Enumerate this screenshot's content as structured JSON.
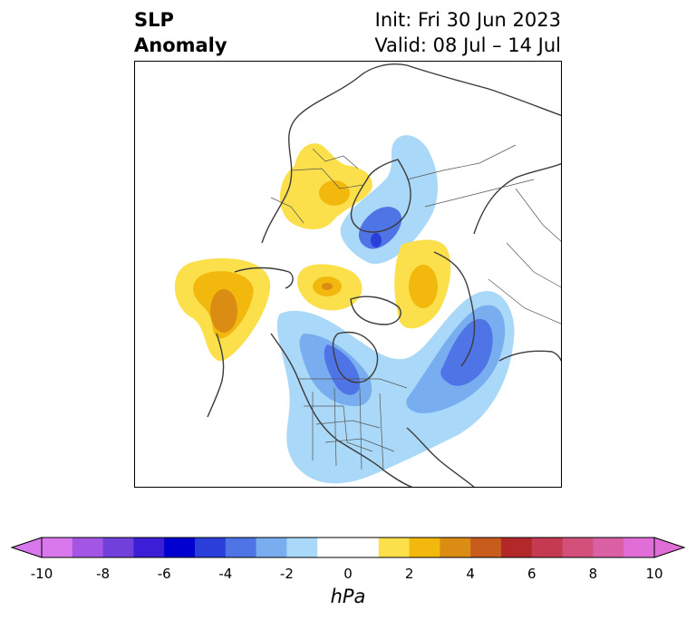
{
  "title": {
    "variable_line1": "SLP",
    "variable_line2": "Anomaly",
    "init": "Init: Fri 30 Jun 2023",
    "valid": "Valid: 08 Jul – 14 Jul"
  },
  "colorbar": {
    "units": "hPa",
    "ticks": [
      "-10",
      "-8",
      "-6",
      "-4",
      "-2",
      "0",
      "2",
      "4",
      "6",
      "8",
      "10"
    ],
    "bins": [
      {
        "from": -10,
        "to": -9,
        "color": "#d977ec"
      },
      {
        "from": -9,
        "to": -8,
        "color": "#a355e3"
      },
      {
        "from": -8,
        "to": -7,
        "color": "#7140dc"
      },
      {
        "from": -7,
        "to": -6,
        "color": "#3c1ed6"
      },
      {
        "from": -6,
        "to": -5,
        "color": "#0000d0"
      },
      {
        "from": -5,
        "to": -4,
        "color": "#2a3ed9"
      },
      {
        "from": -4,
        "to": -3,
        "color": "#4f74e6"
      },
      {
        "from": -3,
        "to": -2,
        "color": "#78aef0"
      },
      {
        "from": -2,
        "to": -1,
        "color": "#a9d8f8"
      },
      {
        "from": -1,
        "to": 1,
        "color": "#ffffff"
      },
      {
        "from": 1,
        "to": 2,
        "color": "#fbe04c"
      },
      {
        "from": 2,
        "to": 3,
        "color": "#f2b80d"
      },
      {
        "from": 3,
        "to": 4,
        "color": "#db8c13"
      },
      {
        "from": 4,
        "to": 5,
        "color": "#c85c1c"
      },
      {
        "from": 5,
        "to": 6,
        "color": "#b3292a"
      },
      {
        "from": 6,
        "to": 7,
        "color": "#c43a50"
      },
      {
        "from": 7,
        "to": 8,
        "color": "#d2507a"
      },
      {
        "from": 8,
        "to": 9,
        "color": "#d960a3"
      },
      {
        "from": 9,
        "to": 10,
        "color": "#e06ed6"
      }
    ],
    "extend_low_color": "#d977ec",
    "extend_high_color": "#e06ed6"
  },
  "map": {
    "projection": "polar-stereographic (Northern Hemisphere)",
    "features": [
      "coastlines",
      "country borders",
      "US state borders"
    ],
    "anomaly_centers": [
      {
        "region": "North Pacific / Gulf of Alaska",
        "sign": "positive",
        "peak_hpa": 3
      },
      {
        "region": "Scandinavia / Northern Europe",
        "sign": "positive",
        "peak_hpa": 2
      },
      {
        "region": "Northern Siberia / Laptev Sea",
        "sign": "negative",
        "peak_hpa": -3
      },
      {
        "region": "East Siberia / Chukotka",
        "sign": "positive",
        "peak_hpa": 2
      },
      {
        "region": "Beaufort Sea / Arctic Canada",
        "sign": "positive",
        "peak_hpa": 3
      },
      {
        "region": "Central Canada / Hudson Bay",
        "sign": "negative",
        "peak_hpa": -3
      },
      {
        "region": "North Atlantic (southeast of Greenland)",
        "sign": "negative",
        "peak_hpa": -3
      }
    ]
  }
}
